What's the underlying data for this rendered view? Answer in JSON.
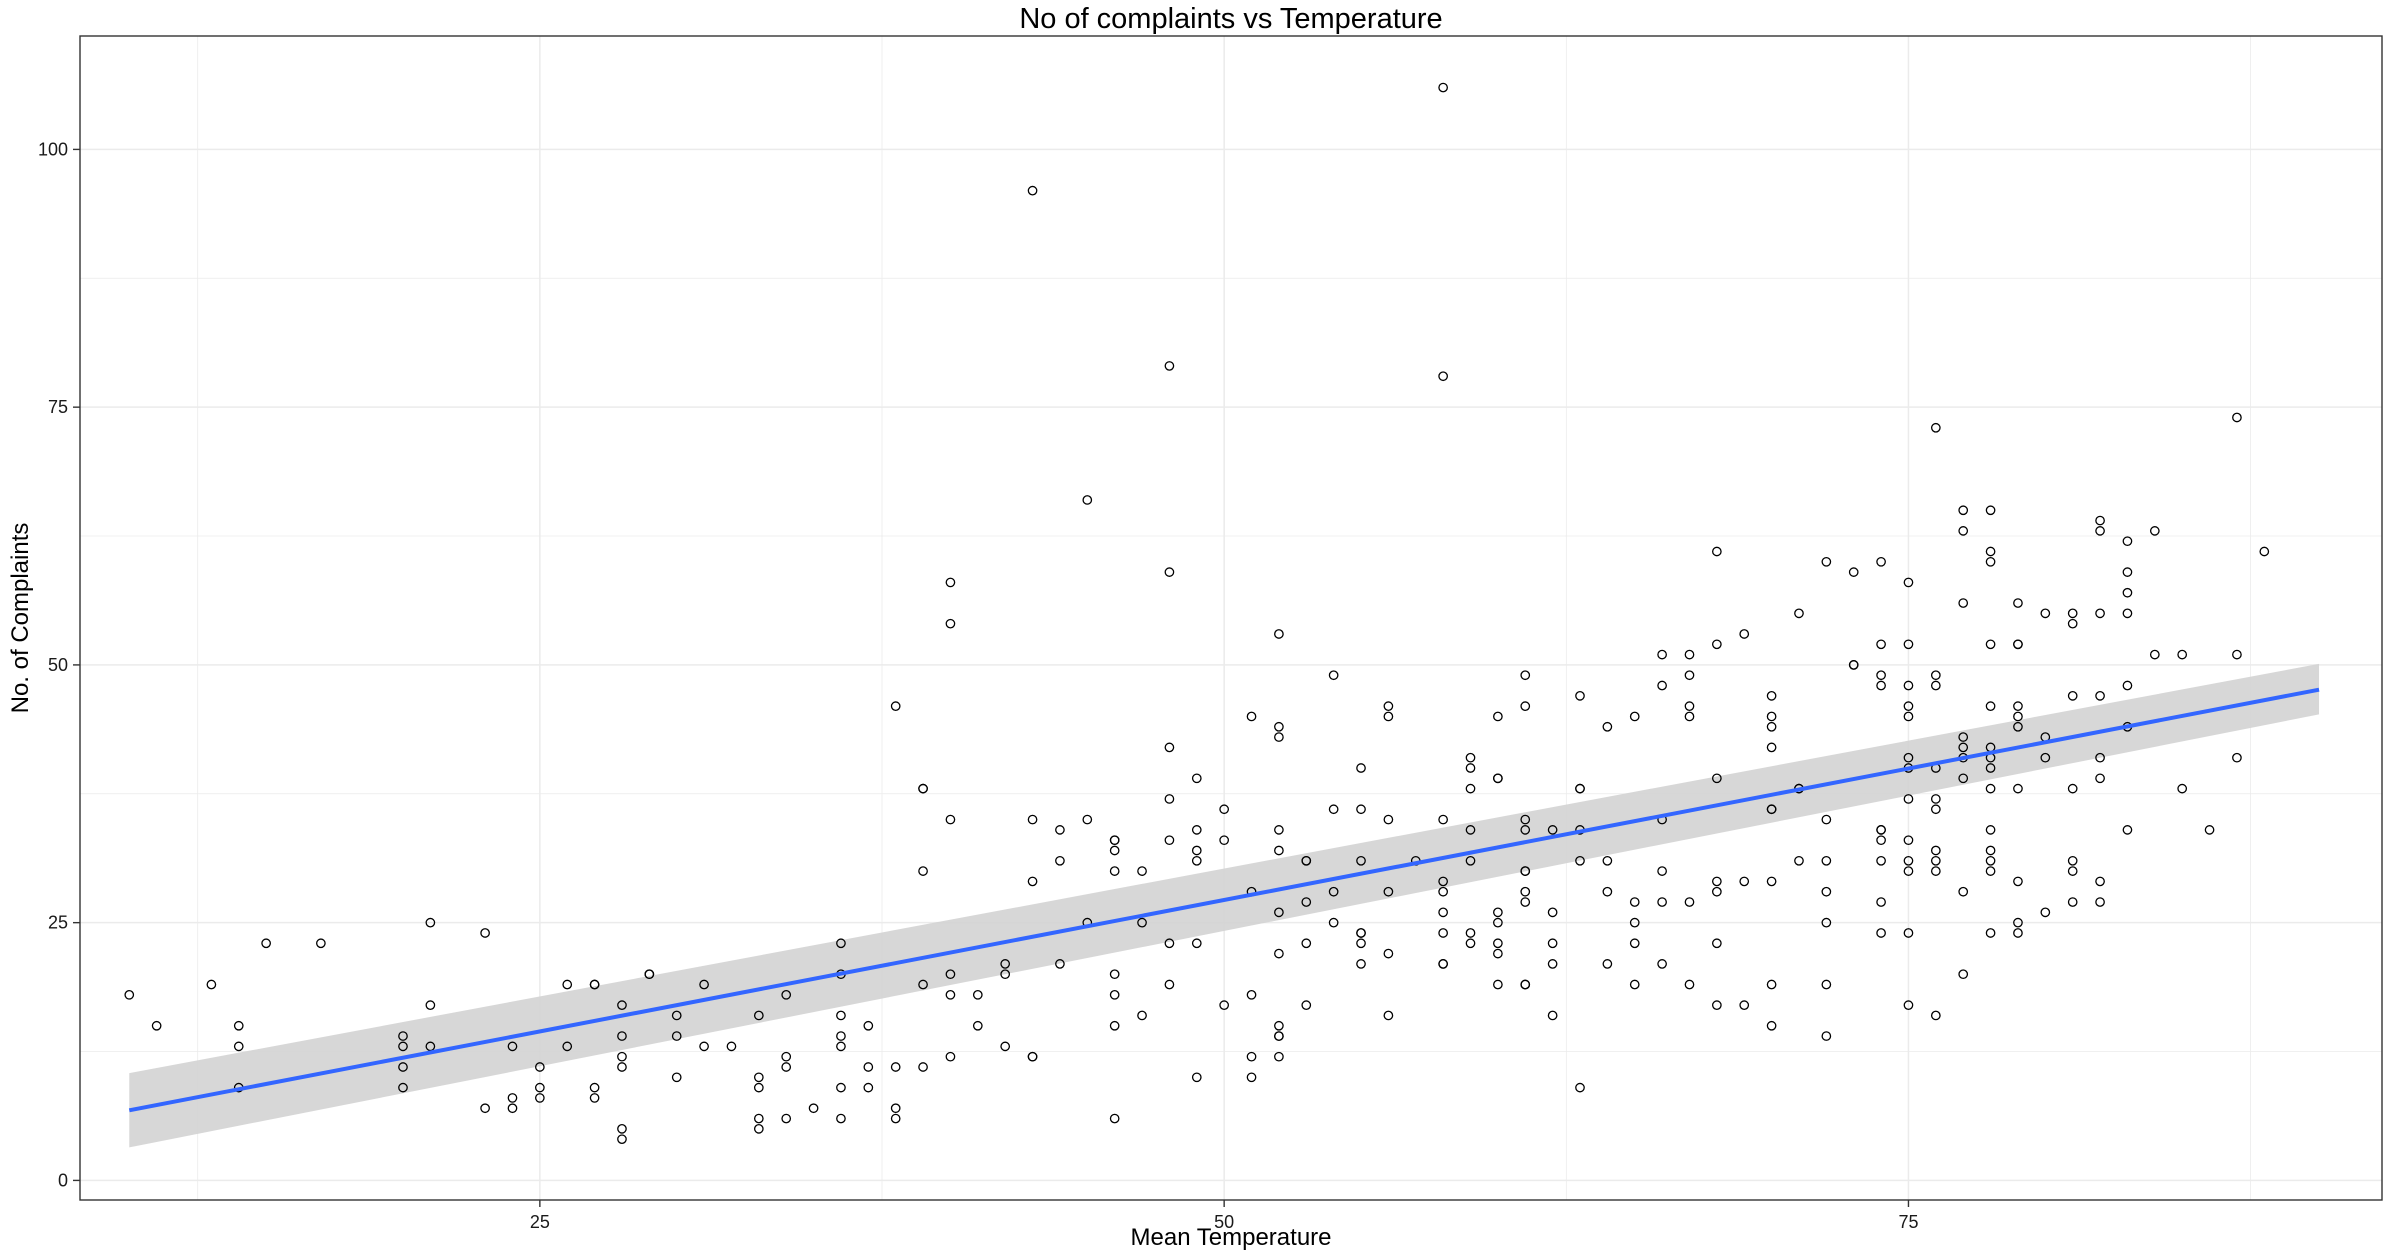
{
  "chart_data": {
    "type": "scatter",
    "title": "No of complaints vs Temperature",
    "xlabel": "Mean Temperature",
    "ylabel": "No. of Complaints",
    "xlim": [
      8.2,
      92.3
    ],
    "ylim": [
      -1.9,
      111
    ],
    "x_ticks": [
      25,
      50,
      75
    ],
    "x_tick_labels": [
      "25",
      "50",
      "75"
    ],
    "y_ticks": [
      0,
      25,
      50,
      75,
      100
    ],
    "y_tick_labels": [
      "0",
      "25",
      "50",
      "75",
      "100"
    ],
    "grid": true,
    "legend": "none",
    "colors": {
      "point_stroke": "#000000",
      "fit_line": "#3366ff",
      "ribbon": "#d3d3d3",
      "grid": "#ebebeb",
      "panel_border": "#333333"
    },
    "trend_line": {
      "method": "lm",
      "x": [
        10,
        90
      ],
      "y": [
        6.8,
        47.6
      ],
      "ci_lower": [
        3.2,
        45.2
      ],
      "ci_upper": [
        10.4,
        50.1
      ]
    },
    "points": [
      [
        10,
        18
      ],
      [
        11,
        15
      ],
      [
        13,
        19
      ],
      [
        14,
        15
      ],
      [
        14,
        13
      ],
      [
        14,
        9
      ],
      [
        15,
        23
      ],
      [
        17,
        23
      ],
      [
        20,
        14
      ],
      [
        20,
        13
      ],
      [
        20,
        11
      ],
      [
        20,
        9
      ],
      [
        21,
        25
      ],
      [
        21,
        17
      ],
      [
        21,
        13
      ],
      [
        23,
        24
      ],
      [
        23,
        7
      ],
      [
        24,
        13
      ],
      [
        24,
        8
      ],
      [
        24,
        7
      ],
      [
        25,
        11
      ],
      [
        25,
        9
      ],
      [
        25,
        8
      ],
      [
        26,
        19
      ],
      [
        26,
        13
      ],
      [
        27,
        19
      ],
      [
        27,
        19
      ],
      [
        27,
        9
      ],
      [
        27,
        8
      ],
      [
        28,
        17
      ],
      [
        28,
        14
      ],
      [
        28,
        12
      ],
      [
        28,
        11
      ],
      [
        28,
        5
      ],
      [
        28,
        4
      ],
      [
        29,
        20
      ],
      [
        29,
        20
      ],
      [
        30,
        16
      ],
      [
        30,
        14
      ],
      [
        30,
        10
      ],
      [
        31,
        19
      ],
      [
        31,
        13
      ],
      [
        32,
        13
      ],
      [
        33,
        16
      ],
      [
        33,
        10
      ],
      [
        33,
        9
      ],
      [
        33,
        6
      ],
      [
        33,
        5
      ],
      [
        34,
        18
      ],
      [
        34,
        12
      ],
      [
        34,
        11
      ],
      [
        34,
        6
      ],
      [
        35,
        7
      ],
      [
        36,
        23
      ],
      [
        36,
        20
      ],
      [
        36,
        16
      ],
      [
        36,
        14
      ],
      [
        36,
        13
      ],
      [
        36,
        9
      ],
      [
        36,
        6
      ],
      [
        37,
        15
      ],
      [
        37,
        11
      ],
      [
        37,
        9
      ],
      [
        38,
        46
      ],
      [
        38,
        11
      ],
      [
        38,
        7
      ],
      [
        38,
        6
      ],
      [
        39,
        38
      ],
      [
        39,
        38
      ],
      [
        39,
        30
      ],
      [
        39,
        19
      ],
      [
        39,
        11
      ],
      [
        40,
        58
      ],
      [
        40,
        54
      ],
      [
        40,
        35
      ],
      [
        40,
        20
      ],
      [
        40,
        18
      ],
      [
        40,
        12
      ],
      [
        41,
        18
      ],
      [
        41,
        15
      ],
      [
        42,
        21
      ],
      [
        42,
        20
      ],
      [
        42,
        13
      ],
      [
        43,
        96
      ],
      [
        43,
        35
      ],
      [
        43,
        29
      ],
      [
        43,
        12
      ],
      [
        43,
        12
      ],
      [
        44,
        34
      ],
      [
        44,
        31
      ],
      [
        44,
        21
      ],
      [
        45,
        66
      ],
      [
        45,
        35
      ],
      [
        45,
        25
      ],
      [
        46,
        33
      ],
      [
        46,
        33
      ],
      [
        46,
        32
      ],
      [
        46,
        30
      ],
      [
        46,
        20
      ],
      [
        46,
        18
      ],
      [
        46,
        15
      ],
      [
        46,
        6
      ],
      [
        47,
        30
      ],
      [
        47,
        25
      ],
      [
        47,
        16
      ],
      [
        48,
        79
      ],
      [
        48,
        59
      ],
      [
        48,
        42
      ],
      [
        48,
        37
      ],
      [
        48,
        33
      ],
      [
        48,
        23
      ],
      [
        48,
        19
      ],
      [
        49,
        39
      ],
      [
        49,
        34
      ],
      [
        49,
        32
      ],
      [
        49,
        31
      ],
      [
        49,
        23
      ],
      [
        49,
        10
      ],
      [
        50,
        36
      ],
      [
        50,
        33
      ],
      [
        50,
        17
      ],
      [
        51,
        45
      ],
      [
        51,
        28
      ],
      [
        51,
        18
      ],
      [
        51,
        12
      ],
      [
        51,
        10
      ],
      [
        52,
        53
      ],
      [
        52,
        44
      ],
      [
        52,
        43
      ],
      [
        52,
        34
      ],
      [
        52,
        32
      ],
      [
        52,
        26
      ],
      [
        52,
        22
      ],
      [
        52,
        15
      ],
      [
        52,
        14
      ],
      [
        52,
        14
      ],
      [
        52,
        12
      ],
      [
        53,
        31
      ],
      [
        53,
        31
      ],
      [
        53,
        27
      ],
      [
        53,
        23
      ],
      [
        53,
        17
      ],
      [
        54,
        49
      ],
      [
        54,
        36
      ],
      [
        54,
        28
      ],
      [
        54,
        25
      ],
      [
        55,
        40
      ],
      [
        55,
        36
      ],
      [
        55,
        31
      ],
      [
        55,
        24
      ],
      [
        55,
        24
      ],
      [
        55,
        23
      ],
      [
        55,
        21
      ],
      [
        56,
        46
      ],
      [
        56,
        45
      ],
      [
        56,
        35
      ],
      [
        56,
        28
      ],
      [
        56,
        22
      ],
      [
        56,
        16
      ],
      [
        57,
        31
      ],
      [
        58,
        106
      ],
      [
        58,
        78
      ],
      [
        58,
        35
      ],
      [
        58,
        29
      ],
      [
        58,
        28
      ],
      [
        58,
        26
      ],
      [
        58,
        24
      ],
      [
        58,
        21
      ],
      [
        58,
        21
      ],
      [
        59,
        41
      ],
      [
        59,
        40
      ],
      [
        59,
        38
      ],
      [
        59,
        34
      ],
      [
        59,
        31
      ],
      [
        59,
        24
      ],
      [
        59,
        23
      ],
      [
        60,
        45
      ],
      [
        60,
        39
      ],
      [
        60,
        39
      ],
      [
        60,
        26
      ],
      [
        60,
        25
      ],
      [
        60,
        23
      ],
      [
        60,
        22
      ],
      [
        60,
        19
      ],
      [
        61,
        49
      ],
      [
        61,
        46
      ],
      [
        61,
        35
      ],
      [
        61,
        34
      ],
      [
        61,
        30
      ],
      [
        61,
        30
      ],
      [
        61,
        28
      ],
      [
        61,
        27
      ],
      [
        61,
        19
      ],
      [
        61,
        19
      ],
      [
        62,
        34
      ],
      [
        62,
        26
      ],
      [
        62,
        23
      ],
      [
        62,
        21
      ],
      [
        62,
        16
      ],
      [
        63,
        47
      ],
      [
        63,
        38
      ],
      [
        63,
        38
      ],
      [
        63,
        34
      ],
      [
        63,
        31
      ],
      [
        63,
        9
      ],
      [
        64,
        44
      ],
      [
        64,
        31
      ],
      [
        64,
        28
      ],
      [
        64,
        21
      ],
      [
        65,
        45
      ],
      [
        65,
        27
      ],
      [
        65,
        25
      ],
      [
        65,
        23
      ],
      [
        65,
        19
      ],
      [
        66,
        51
      ],
      [
        66,
        48
      ],
      [
        66,
        35
      ],
      [
        66,
        30
      ],
      [
        66,
        27
      ],
      [
        66,
        21
      ],
      [
        67,
        51
      ],
      [
        67,
        49
      ],
      [
        67,
        46
      ],
      [
        67,
        45
      ],
      [
        67,
        27
      ],
      [
        67,
        19
      ],
      [
        68,
        61
      ],
      [
        68,
        52
      ],
      [
        68,
        39
      ],
      [
        68,
        29
      ],
      [
        68,
        28
      ],
      [
        68,
        23
      ],
      [
        68,
        17
      ],
      [
        69,
        53
      ],
      [
        69,
        29
      ],
      [
        69,
        17
      ],
      [
        70,
        47
      ],
      [
        70,
        45
      ],
      [
        70,
        44
      ],
      [
        70,
        42
      ],
      [
        70,
        36
      ],
      [
        70,
        36
      ],
      [
        70,
        29
      ],
      [
        70,
        19
      ],
      [
        70,
        15
      ],
      [
        71,
        55
      ],
      [
        71,
        38
      ],
      [
        71,
        38
      ],
      [
        71,
        31
      ],
      [
        72,
        60
      ],
      [
        72,
        35
      ],
      [
        72,
        31
      ],
      [
        72,
        28
      ],
      [
        72,
        25
      ],
      [
        72,
        19
      ],
      [
        72,
        14
      ],
      [
        73,
        59
      ],
      [
        73,
        50
      ],
      [
        73,
        50
      ],
      [
        74,
        60
      ],
      [
        74,
        52
      ],
      [
        74,
        49
      ],
      [
        74,
        48
      ],
      [
        74,
        34
      ],
      [
        74,
        34
      ],
      [
        74,
        33
      ],
      [
        74,
        31
      ],
      [
        74,
        27
      ],
      [
        74,
        24
      ],
      [
        75,
        58
      ],
      [
        75,
        52
      ],
      [
        75,
        48
      ],
      [
        75,
        46
      ],
      [
        75,
        45
      ],
      [
        75,
        41
      ],
      [
        75,
        40
      ],
      [
        75,
        37
      ],
      [
        75,
        33
      ],
      [
        75,
        31
      ],
      [
        75,
        30
      ],
      [
        75,
        24
      ],
      [
        75,
        17
      ],
      [
        76,
        73
      ],
      [
        76,
        49
      ],
      [
        76,
        48
      ],
      [
        76,
        40
      ],
      [
        76,
        37
      ],
      [
        76,
        36
      ],
      [
        76,
        32
      ],
      [
        76,
        31
      ],
      [
        76,
        30
      ],
      [
        76,
        16
      ],
      [
        77,
        65
      ],
      [
        77,
        63
      ],
      [
        77,
        56
      ],
      [
        77,
        43
      ],
      [
        77,
        42
      ],
      [
        77,
        41
      ],
      [
        77,
        39
      ],
      [
        77,
        28
      ],
      [
        77,
        20
      ],
      [
        78,
        65
      ],
      [
        78,
        61
      ],
      [
        78,
        60
      ],
      [
        78,
        52
      ],
      [
        78,
        46
      ],
      [
        78,
        42
      ],
      [
        78,
        41
      ],
      [
        78,
        40
      ],
      [
        78,
        38
      ],
      [
        78,
        34
      ],
      [
        78,
        32
      ],
      [
        78,
        31
      ],
      [
        78,
        30
      ],
      [
        78,
        24
      ],
      [
        79,
        56
      ],
      [
        79,
        52
      ],
      [
        79,
        52
      ],
      [
        79,
        46
      ],
      [
        79,
        45
      ],
      [
        79,
        44
      ],
      [
        79,
        38
      ],
      [
        79,
        29
      ],
      [
        79,
        25
      ],
      [
        79,
        24
      ],
      [
        80,
        55
      ],
      [
        80,
        43
      ],
      [
        80,
        41
      ],
      [
        80,
        26
      ],
      [
        81,
        55
      ],
      [
        81,
        54
      ],
      [
        81,
        47
      ],
      [
        81,
        38
      ],
      [
        81,
        31
      ],
      [
        81,
        30
      ],
      [
        81,
        27
      ],
      [
        82,
        64
      ],
      [
        82,
        63
      ],
      [
        82,
        55
      ],
      [
        82,
        47
      ],
      [
        82,
        41
      ],
      [
        82,
        39
      ],
      [
        82,
        29
      ],
      [
        82,
        27
      ],
      [
        83,
        62
      ],
      [
        83,
        59
      ],
      [
        83,
        57
      ],
      [
        83,
        55
      ],
      [
        83,
        48
      ],
      [
        83,
        44
      ],
      [
        83,
        34
      ],
      [
        84,
        63
      ],
      [
        84,
        51
      ],
      [
        85,
        51
      ],
      [
        85,
        38
      ],
      [
        86,
        34
      ],
      [
        87,
        74
      ],
      [
        87,
        51
      ],
      [
        87,
        41
      ],
      [
        88,
        61
      ]
    ]
  }
}
